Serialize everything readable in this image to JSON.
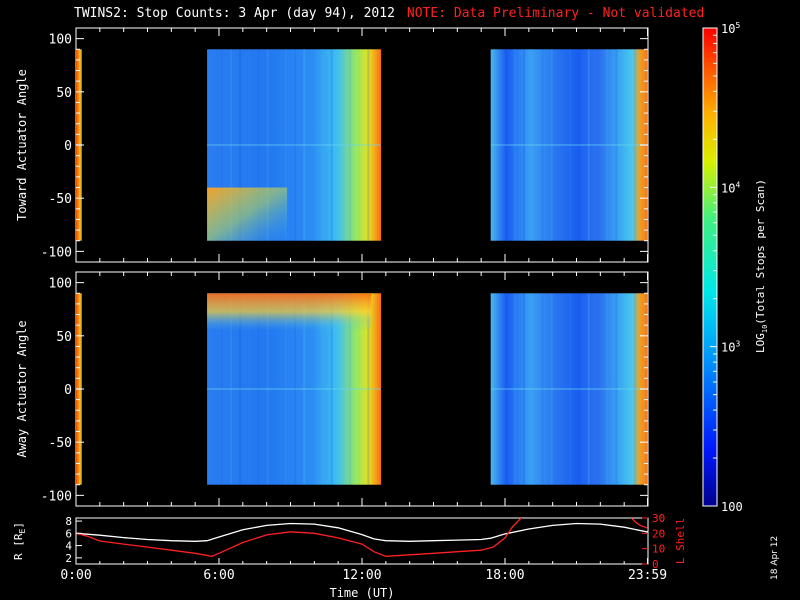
{
  "title": {
    "main": "TWINS2: Stop Counts:  3 Apr (day  94), 2012",
    "note": "NOTE: Data Preliminary - Not validated"
  },
  "colors": {
    "background": "#000000",
    "note": "#ff2020",
    "axis": "#ffffff",
    "r_line": "#ffffff",
    "lshell_line": "#ff2020"
  },
  "date_stamp": "18 Apr 12",
  "chart_data": [
    {
      "type": "heatmap",
      "ylabel": "Toward Actuator Angle",
      "ylim": [
        -110,
        110
      ],
      "yticks": [
        100,
        50,
        0,
        -50,
        -100
      ],
      "xlim": [
        0,
        24
      ],
      "color_scale": "log",
      "data_blocks_hours": [
        [
          0.0,
          0.25
        ],
        [
          5.5,
          12.8
        ],
        [
          17.4,
          23.99
        ]
      ],
      "angle_range": [
        -90,
        90
      ]
    },
    {
      "type": "heatmap",
      "ylabel": "Away Actuator Angle",
      "ylim": [
        -110,
        110
      ],
      "yticks": [
        100,
        50,
        0,
        -50,
        -100
      ],
      "xlim": [
        0,
        24
      ],
      "color_scale": "log",
      "data_blocks_hours": [
        [
          0.0,
          0.25
        ],
        [
          5.5,
          12.8
        ],
        [
          17.4,
          23.99
        ]
      ],
      "angle_range": [
        -90,
        90
      ]
    },
    {
      "type": "line",
      "xlabel": "Time (UT)",
      "xticks": [
        "0:00",
        "6:00",
        "12:00",
        "18:00",
        "23:59"
      ],
      "xtick_hours": [
        0,
        6,
        12,
        18,
        23.98
      ],
      "ylabel_left": "R [R",
      "ylabel_left_sub": "E",
      "ylabel_left_close": "]",
      "left_ylim": [
        1,
        8.5
      ],
      "left_yticks": [
        8,
        6,
        4,
        2
      ],
      "ylabel_right": "L Shell",
      "right_ylim": [
        0,
        30
      ],
      "right_yticks": [
        30,
        20,
        10,
        0
      ],
      "series": [
        {
          "axis": "left",
          "x": [
            0,
            1,
            2,
            3,
            4,
            5,
            5.5,
            6,
            7,
            8,
            9,
            10,
            11,
            12,
            12.5,
            13,
            14,
            15,
            16,
            17,
            17.4,
            18,
            19,
            20,
            21,
            22,
            23,
            24
          ],
          "y": [
            6.0,
            5.7,
            5.3,
            5.0,
            4.8,
            4.7,
            4.8,
            5.4,
            6.6,
            7.3,
            7.6,
            7.5,
            6.9,
            5.8,
            5.1,
            4.8,
            4.7,
            4.8,
            4.9,
            5.0,
            5.2,
            5.9,
            6.7,
            7.3,
            7.6,
            7.5,
            7.0,
            6.2
          ]
        },
        {
          "axis": "right",
          "x": [
            0,
            0.5,
            1,
            2,
            3,
            4,
            5,
            5.7,
            6,
            7,
            8,
            9,
            10,
            11,
            12,
            12.5,
            13,
            14,
            15,
            16,
            17,
            17.5,
            18,
            18.3,
            18.8
          ],
          "y": [
            20,
            18,
            15,
            13,
            11,
            9,
            7,
            5,
            7,
            14,
            19,
            21,
            20,
            17,
            13,
            8,
            5,
            6,
            7,
            8,
            9,
            11,
            17,
            24,
            32
          ]
        },
        {
          "axis": "right",
          "x": [
            23.3,
            23.5,
            23.7,
            23.9,
            24
          ],
          "y": [
            30,
            27,
            25,
            24,
            23
          ]
        }
      ]
    },
    {
      "type": "heatmap",
      "role": "colorbar",
      "label_main": "LOG",
      "label_sub": "10",
      "label_rest": "(Total Stops per Scan)",
      "range": [
        100,
        100000
      ],
      "ticks": [
        {
          "label": "100",
          "base": "100",
          "exp": ""
        },
        {
          "label": "10^3",
          "base": "10",
          "exp": "3"
        },
        {
          "label": "10^4",
          "base": "10",
          "exp": "4"
        },
        {
          "label": "10^5",
          "base": "10",
          "exp": "5"
        }
      ]
    }
  ]
}
